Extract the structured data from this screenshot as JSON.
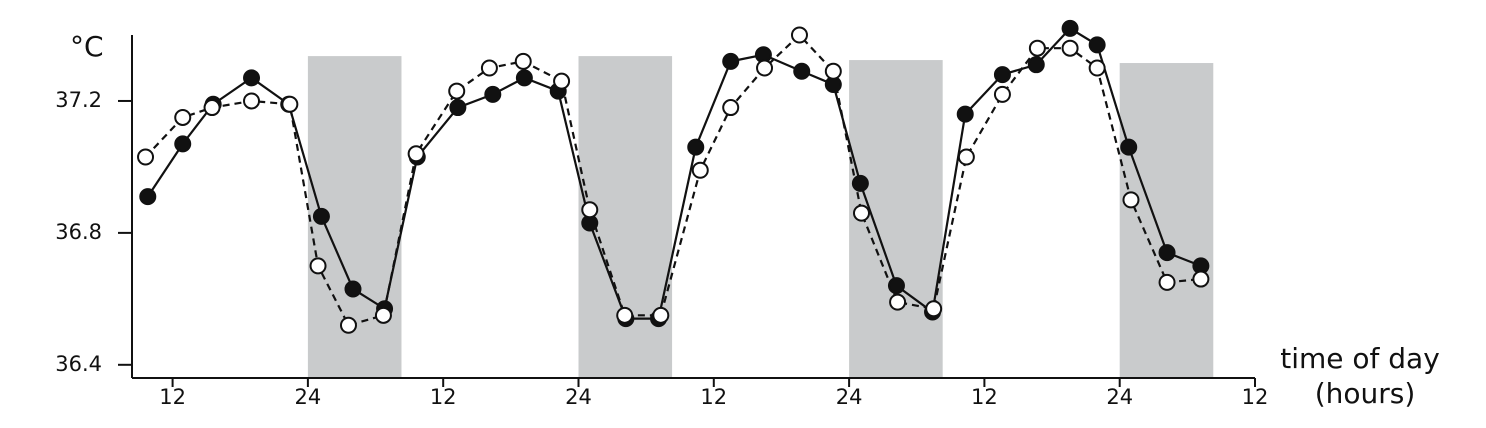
{
  "chart_data": {
    "type": "line",
    "ylabel": "°C",
    "xlabel": [
      "time of day",
      "(hours)"
    ],
    "xlim": [
      8.4,
      108
    ],
    "ylim": [
      36.36,
      37.4
    ],
    "xticks": [
      {
        "value": 12,
        "label": "12"
      },
      {
        "value": 24,
        "label": "24"
      },
      {
        "value": 36,
        "label": "12"
      },
      {
        "value": 48,
        "label": "24"
      },
      {
        "value": 60,
        "label": "12"
      },
      {
        "value": 72,
        "label": "24"
      },
      {
        "value": 84,
        "label": "12"
      },
      {
        "value": 96,
        "label": "24"
      },
      {
        "value": 108,
        "label": "12"
      }
    ],
    "yticks": [
      36.4,
      36.8,
      37.2
    ],
    "shaded": [
      {
        "x0": 24,
        "x1": 32.3,
        "y1": 37.336,
        "color": "#c9cbcc"
      },
      {
        "x0": 48,
        "x1": 56.3,
        "y1": 37.336,
        "color": "#c9cbcc"
      },
      {
        "x0": 72,
        "x1": 80.3,
        "y1": 37.324,
        "color": "#c9cbcc"
      },
      {
        "x0": 96,
        "x1": 104.3,
        "y1": 37.315,
        "color": "#c9cbcc"
      }
    ],
    "series": [
      {
        "color": "#111111",
        "fill": "#111111",
        "dashed": false,
        "x": [
          9.8,
          12.9,
          15.6,
          19.0,
          22.3,
          25.2,
          28.0,
          30.8,
          33.7,
          37.3,
          40.4,
          43.2,
          46.2,
          49.0,
          52.2,
          55.1,
          58.4,
          61.5,
          64.4,
          67.8,
          70.6,
          73.0,
          76.2,
          79.4,
          82.3,
          85.6,
          88.6,
          91.6,
          94.0,
          96.8,
          100.2,
          103.2
        ],
        "values": [
          36.91,
          37.07,
          37.19,
          37.27,
          37.19,
          36.85,
          36.63,
          36.57,
          37.03,
          37.18,
          37.22,
          37.27,
          37.23,
          36.83,
          36.54,
          36.54,
          37.06,
          37.32,
          37.34,
          37.29,
          37.25,
          36.95,
          36.64,
          36.56,
          37.16,
          37.28,
          37.31,
          37.42,
          37.37,
          37.06,
          36.74,
          36.7
        ]
      },
      {
        "color": "#111111",
        "fill": "#ffffff",
        "dashed": true,
        "x": [
          9.6,
          12.9,
          15.5,
          19.0,
          22.4,
          24.9,
          27.6,
          30.7,
          33.6,
          37.2,
          40.1,
          43.1,
          46.5,
          49.0,
          52.1,
          55.3,
          58.8,
          61.5,
          64.5,
          67.6,
          70.6,
          73.1,
          76.3,
          79.5,
          82.4,
          85.6,
          88.7,
          91.6,
          94.0,
          97.0,
          100.2,
          103.2
        ],
        "values": [
          37.03,
          37.15,
          37.18,
          37.2,
          37.19,
          36.7,
          36.52,
          36.55,
          37.04,
          37.23,
          37.3,
          37.32,
          37.26,
          36.87,
          36.55,
          36.55,
          36.99,
          37.18,
          37.3,
          37.4,
          37.29,
          36.86,
          36.59,
          36.57,
          37.03,
          37.22,
          37.36,
          37.36,
          37.3,
          36.9,
          36.65,
          36.66
        ]
      }
    ]
  }
}
